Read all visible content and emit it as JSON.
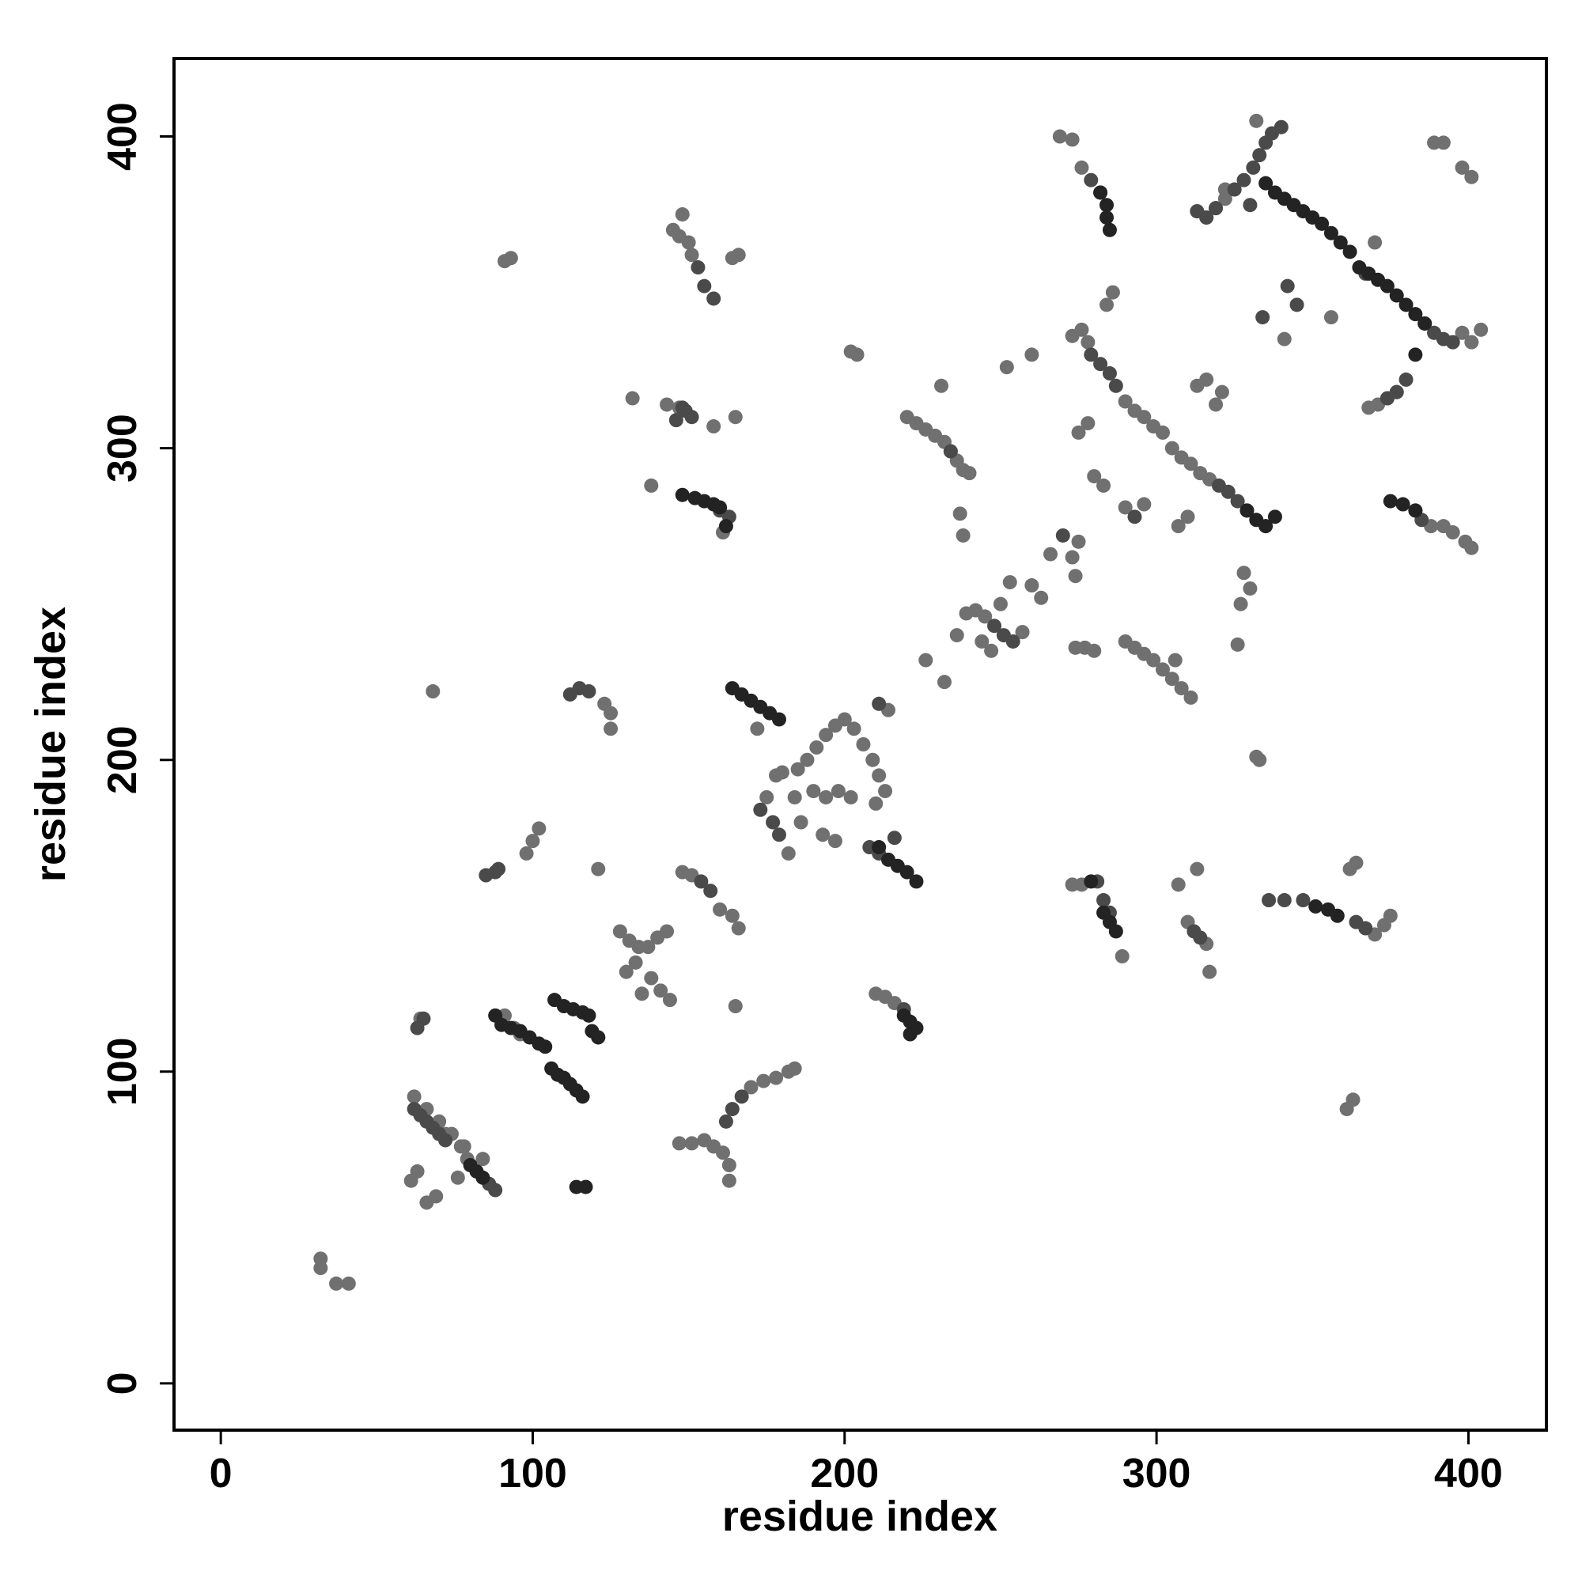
{
  "chart_data": {
    "type": "scatter",
    "xlabel": "residue index",
    "ylabel": "residue index",
    "xlim": [
      -15,
      425
    ],
    "ylim": [
      -15,
      425
    ],
    "xticks": [
      0,
      100,
      200,
      300,
      400
    ],
    "yticks": [
      0,
      100,
      200,
      300,
      400
    ],
    "series": [
      {
        "color": "#707070",
        "x": [
          32,
          32,
          37,
          41,
          61,
          63,
          66,
          69,
          64,
          72,
          77,
          79,
          76,
          62,
          66,
          70,
          74,
          78,
          84,
          91,
          94,
          96,
          98,
          100,
          102,
          68,
          121,
          123,
          125,
          125,
          121,
          128,
          131,
          134,
          137,
          140,
          143,
          133,
          138,
          141,
          144,
          130,
          135,
          148,
          151,
          160,
          164,
          166,
          147,
          151,
          155,
          158,
          161,
          163,
          163,
          170,
          174,
          178,
          182,
          184,
          165,
          172,
          91,
          93,
          145,
          147,
          150,
          151,
          148,
          164,
          166,
          132,
          143,
          147,
          158,
          165,
          138,
          161,
          178,
          180,
          175,
          184,
          185,
          188,
          191,
          194,
          197,
          200,
          203,
          206,
          209,
          211,
          213,
          210,
          202,
          198,
          194,
          190,
          193,
          197,
          186,
          182,
          214,
          216,
          210,
          213,
          202,
          204,
          220,
          223,
          226,
          229,
          232,
          234,
          236,
          238,
          240,
          231,
          252,
          260,
          237,
          238,
          226,
          232,
          236,
          239,
          242,
          245,
          257,
          260,
          263,
          266,
          275,
          273,
          274,
          253,
          250,
          247,
          244,
          269,
          273,
          276,
          274,
          277,
          280,
          273,
          276,
          278,
          284,
          286,
          290,
          293,
          296,
          299,
          302,
          305,
          308,
          311,
          314,
          317,
          275,
          278,
          280,
          283,
          290,
          296,
          290,
          293,
          296,
          299,
          302,
          305,
          308,
          311,
          306,
          307,
          310,
          313,
          316,
          319,
          321,
          313,
          316,
          319,
          322,
          332,
          322,
          368,
          371,
          374,
          377,
          398,
          401,
          404,
          370,
          341,
          356,
          389,
          392,
          398,
          401,
          388,
          392,
          395,
          399,
          401,
          328,
          330,
          327,
          326,
          332,
          333,
          273,
          276,
          289,
          307,
          313,
          310,
          316,
          317,
          362,
          364,
          370,
          373,
          375,
          361,
          363
        ],
        "y": [
          37,
          40,
          32,
          32,
          65,
          68,
          58,
          60,
          117,
          80,
          76,
          72,
          66,
          92,
          88,
          84,
          80,
          76,
          72,
          118,
          114,
          112,
          170,
          174,
          178,
          222,
          165,
          218,
          215,
          210,
          111,
          145,
          142,
          140,
          140,
          143,
          145,
          135,
          130,
          126,
          123,
          132,
          125,
          164,
          163,
          152,
          150,
          146,
          77,
          77,
          78,
          76,
          74,
          70,
          65,
          95,
          97,
          98,
          100,
          101,
          121,
          210,
          360,
          361,
          370,
          368,
          366,
          362,
          375,
          361,
          362,
          316,
          314,
          313,
          307,
          310,
          288,
          273,
          195,
          196,
          188,
          188,
          197,
          200,
          204,
          208,
          211,
          213,
          210,
          205,
          200,
          195,
          190,
          186,
          188,
          190,
          188,
          190,
          176,
          174,
          180,
          170,
          216,
          122,
          125,
          124,
          331,
          330,
          310,
          308,
          306,
          304,
          302,
          299,
          296,
          293,
          292,
          320,
          326,
          330,
          279,
          272,
          232,
          225,
          240,
          247,
          248,
          246,
          241,
          256,
          252,
          266,
          270,
          265,
          259,
          257,
          250,
          235,
          238,
          400,
          399,
          390,
          236,
          236,
          235,
          336,
          338,
          334,
          346,
          350,
          315,
          312,
          310,
          307,
          305,
          300,
          297,
          295,
          292,
          290,
          305,
          308,
          291,
          288,
          281,
          282,
          238,
          236,
          234,
          232,
          229,
          226,
          223,
          220,
          232,
          275,
          278,
          320,
          322,
          314,
          318,
          376,
          374,
          377,
          380,
          405,
          383,
          313,
          314,
          316,
          318,
          337,
          334,
          338,
          366,
          335,
          342,
          398,
          398,
          390,
          387,
          275,
          275,
          273,
          270,
          268,
          260,
          255,
          250,
          237,
          201,
          200,
          160,
          160,
          137,
          160,
          165,
          148,
          141,
          132,
          165,
          167,
          144,
          147,
          150,
          88,
          91
        ]
      },
      {
        "color": "#4a4a4a",
        "x": [
          62,
          64,
          66,
          68,
          70,
          72,
          86,
          88,
          63,
          65,
          85,
          88,
          89,
          112,
          115,
          118,
          154,
          157,
          162,
          164,
          167,
          158,
          155,
          153,
          149,
          151,
          146,
          148,
          160,
          163,
          173,
          177,
          179,
          211,
          208,
          211,
          216,
          219,
          234,
          248,
          251,
          254,
          270,
          279,
          282,
          279,
          282,
          285,
          287,
          293,
          320,
          323,
          326,
          329,
          313,
          316,
          319,
          325,
          328,
          330,
          331,
          333,
          335,
          337,
          340,
          389,
          392,
          395,
          386,
          380,
          377,
          374,
          367,
          342,
          345,
          334,
          383,
          385,
          281,
          283,
          285,
          312,
          314,
          336,
          341,
          347,
          364,
          367
        ],
        "y": [
          88,
          86,
          84,
          82,
          80,
          78,
          64,
          62,
          114,
          117,
          163,
          164,
          165,
          221,
          223,
          222,
          161,
          158,
          84,
          88,
          92,
          348,
          352,
          358,
          312,
          310,
          309,
          313,
          280,
          278,
          184,
          180,
          176,
          218,
          172,
          170,
          175,
          120,
          299,
          243,
          240,
          238,
          272,
          386,
          382,
          330,
          327,
          324,
          320,
          278,
          288,
          286,
          283,
          280,
          376,
          374,
          377,
          383,
          386,
          378,
          390,
          394,
          398,
          401,
          403,
          337,
          335,
          334,
          340,
          322,
          318,
          316,
          356,
          352,
          346,
          342,
          280,
          277,
          161,
          155,
          151,
          145,
          143,
          155,
          155,
          155,
          148,
          146
        ]
      },
      {
        "color": "#232323",
        "x": [
          80,
          82,
          84,
          88,
          90,
          93,
          96,
          99,
          102,
          104,
          107,
          110,
          113,
          116,
          118,
          106,
          108,
          110,
          112,
          114,
          116,
          119,
          121,
          114,
          117,
          148,
          152,
          155,
          158,
          160,
          162,
          164,
          167,
          170,
          173,
          176,
          179,
          211,
          214,
          217,
          220,
          223,
          219,
          221,
          223,
          221,
          282,
          284,
          284,
          285,
          335,
          338,
          341,
          344,
          347,
          350,
          353,
          356,
          359,
          362,
          365,
          368,
          371,
          374,
          377,
          380,
          383,
          386,
          329,
          332,
          335,
          338,
          279,
          283,
          285,
          287,
          351,
          355,
          358,
          375,
          379,
          383,
          383
        ],
        "y": [
          70,
          68,
          66,
          118,
          115,
          114,
          113,
          111,
          109,
          108,
          123,
          121,
          120,
          119,
          118,
          101,
          99,
          98,
          96,
          94,
          92,
          113,
          111,
          63,
          63,
          285,
          284,
          283,
          282,
          281,
          275,
          223,
          221,
          219,
          217,
          215,
          213,
          172,
          168,
          166,
          164,
          161,
          118,
          116,
          114,
          112,
          382,
          378,
          374,
          370,
          385,
          382,
          380,
          378,
          376,
          374,
          372,
          369,
          366,
          363,
          358,
          356,
          354,
          352,
          349,
          346,
          343,
          340,
          280,
          277,
          275,
          278,
          161,
          151,
          148,
          145,
          153,
          152,
          150,
          283,
          282,
          280,
          330
        ]
      }
    ]
  }
}
